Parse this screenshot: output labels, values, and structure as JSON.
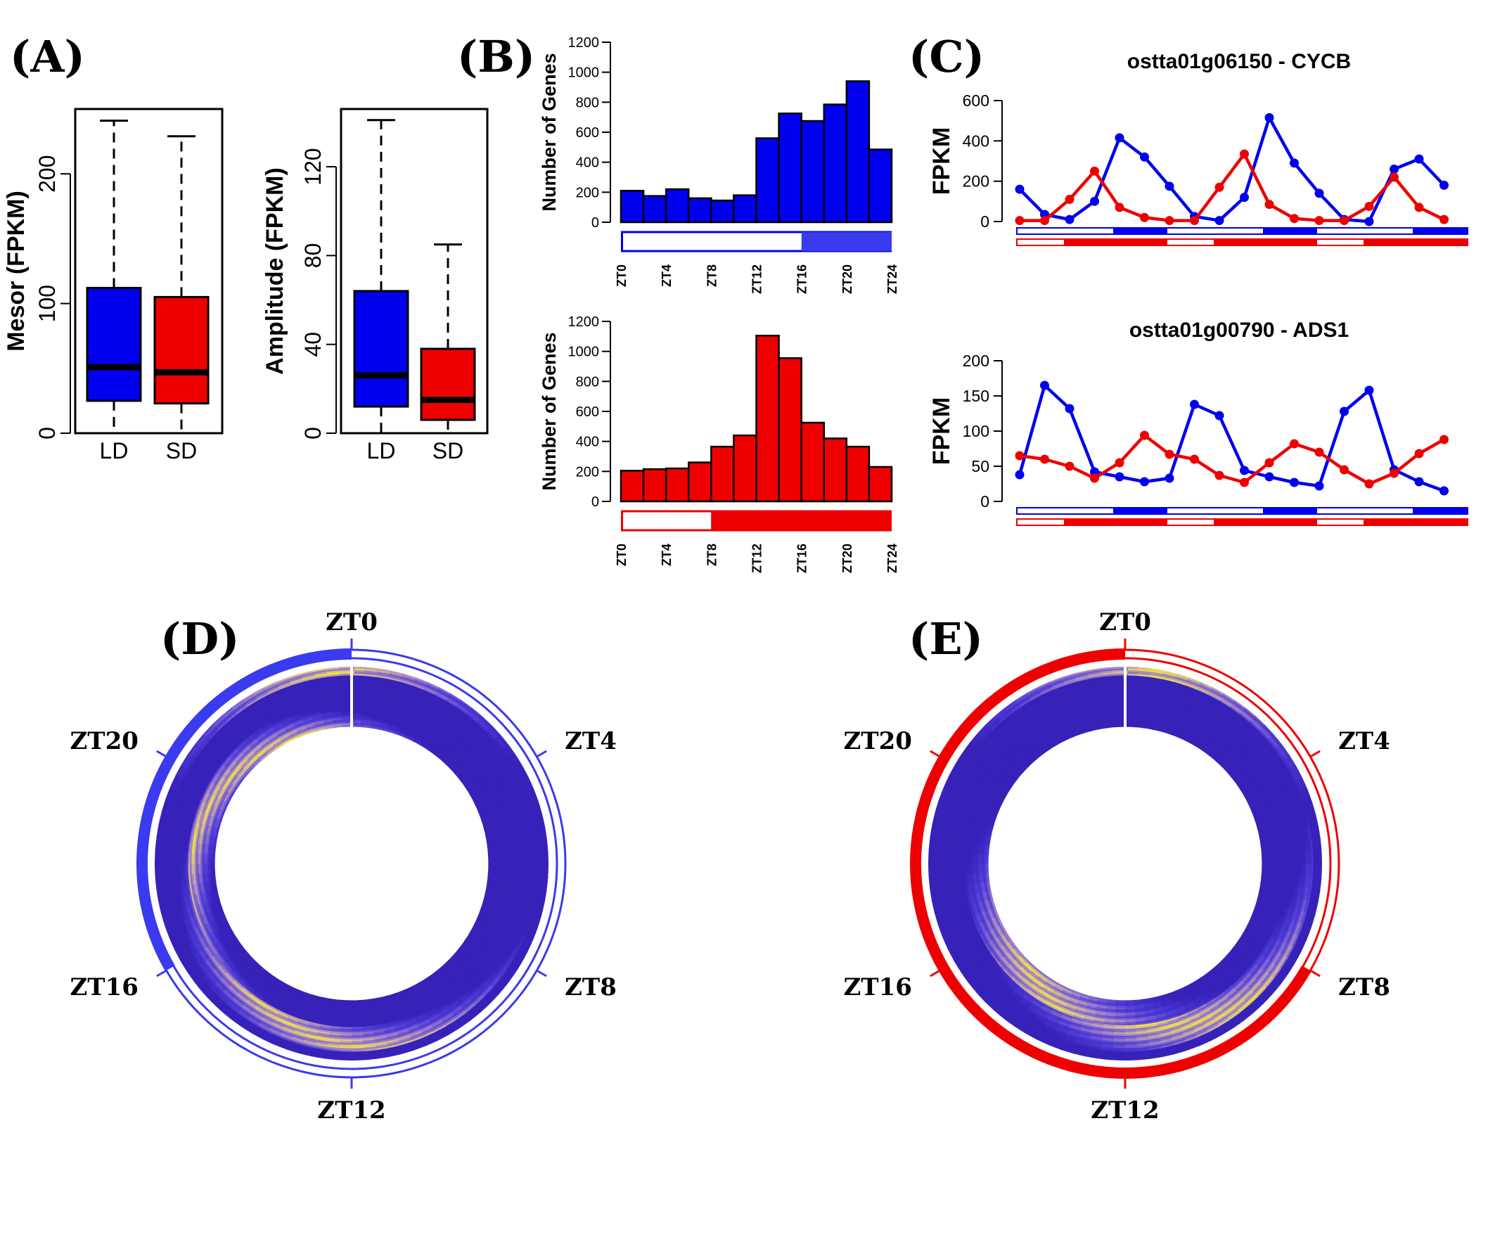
{
  "panels": {
    "A": "(A)",
    "B": "(B)",
    "C": "(C)",
    "D": "(D)",
    "E": "(E)"
  },
  "colors": {
    "LD": "#0000ee",
    "SD": "#ee0000",
    "circleLD": "#3a3aee"
  },
  "chart_data": [
    {
      "id": "A_mesor",
      "type": "box",
      "ylabel": "Mesor (FPKM)",
      "categories": [
        "LD",
        "SD"
      ],
      "yticks": [
        "0",
        "100",
        "200"
      ],
      "ylim": [
        0,
        250
      ],
      "boxes": [
        {
          "name": "LD",
          "whisker_low": 0,
          "q1": 25,
          "median": 51,
          "q3": 112,
          "whisker_high": 241
        },
        {
          "name": "SD",
          "whisker_low": 0,
          "q1": 23,
          "median": 47,
          "q3": 105,
          "whisker_high": 229
        }
      ]
    },
    {
      "id": "A_amplitude",
      "type": "box",
      "ylabel": "Amplitude (FPKM)",
      "categories": [
        "LD",
        "SD"
      ],
      "yticks": [
        "0",
        "40",
        "80",
        "120"
      ],
      "ylim": [
        0,
        146
      ],
      "boxes": [
        {
          "name": "LD",
          "whisker_low": 0,
          "q1": 12,
          "median": 26,
          "q3": 64,
          "whisker_high": 141
        },
        {
          "name": "SD",
          "whisker_low": 0,
          "q1": 6,
          "median": 15,
          "q3": 38,
          "whisker_high": 85
        }
      ]
    },
    {
      "id": "B_LD",
      "type": "bar",
      "ylabel": "Number of Genes",
      "yticks": [
        "0",
        "200",
        "400",
        "600",
        "800",
        "1000",
        "1200"
      ],
      "ylim": [
        0,
        1200
      ],
      "xticks": [
        "ZT0",
        "ZT4",
        "ZT8",
        "ZT12",
        "ZT16",
        "ZT20",
        "ZT24"
      ],
      "values": [
        210,
        175,
        220,
        160,
        145,
        180,
        560,
        725,
        675,
        785,
        940,
        485
      ],
      "light_fraction": 0.667
    },
    {
      "id": "B_SD",
      "type": "bar",
      "ylabel": "Number of Genes",
      "yticks": [
        "0",
        "200",
        "400",
        "600",
        "800",
        "1000",
        "1200"
      ],
      "ylim": [
        0,
        1200
      ],
      "xticks": [
        "ZT0",
        "ZT4",
        "ZT8",
        "ZT12",
        "ZT16",
        "ZT20",
        "ZT24"
      ],
      "values": [
        205,
        215,
        220,
        260,
        365,
        440,
        1105,
        955,
        525,
        420,
        365,
        230
      ],
      "light_fraction": 0.333
    },
    {
      "id": "C_CYCB",
      "type": "line",
      "title": "ostta01g06150 - CYCB",
      "ylabel": "FPKM",
      "yticks": [
        "0",
        "200",
        "400",
        "600"
      ],
      "ylim": [
        0,
        600
      ],
      "series": [
        {
          "color": "LD",
          "values": [
            160,
            35,
            10,
            100,
            415,
            320,
            175,
            25,
            5,
            120,
            515,
            290,
            140,
            10,
            0,
            260,
            310,
            180
          ]
        },
        {
          "color": "SD",
          "values": [
            5,
            5,
            110,
            250,
            70,
            20,
            5,
            5,
            170,
            335,
            85,
            15,
            5,
            5,
            75,
            220,
            70,
            10
          ]
        }
      ]
    },
    {
      "id": "C_ADS1",
      "type": "line",
      "title": "ostta01g00790 - ADS1",
      "ylabel": "FPKM",
      "yticks": [
        "0",
        "50",
        "100",
        "150",
        "200"
      ],
      "ylim": [
        0,
        200
      ],
      "series": [
        {
          "color": "LD",
          "values": [
            38,
            165,
            132,
            42,
            35,
            28,
            33,
            138,
            122,
            44,
            35,
            27,
            22,
            128,
            158,
            45,
            28,
            15
          ]
        },
        {
          "color": "SD",
          "values": [
            65,
            60,
            50,
            33,
            55,
            94,
            67,
            60,
            37,
            27,
            55,
            82,
            70,
            45,
            25,
            40,
            68,
            88
          ]
        }
      ]
    },
    {
      "id": "D_circular_LD",
      "type": "heatmap",
      "angle_labels": [
        "ZT0",
        "ZT4",
        "ZT8",
        "ZT12",
        "ZT16",
        "ZT20"
      ],
      "dark_start_zt": 16,
      "dark_end_zt": 24
    },
    {
      "id": "E_circular_SD",
      "type": "heatmap",
      "angle_labels": [
        "ZT0",
        "ZT4",
        "ZT8",
        "ZT12",
        "ZT16",
        "ZT20"
      ],
      "dark_start_zt": 8,
      "dark_end_zt": 24
    }
  ]
}
